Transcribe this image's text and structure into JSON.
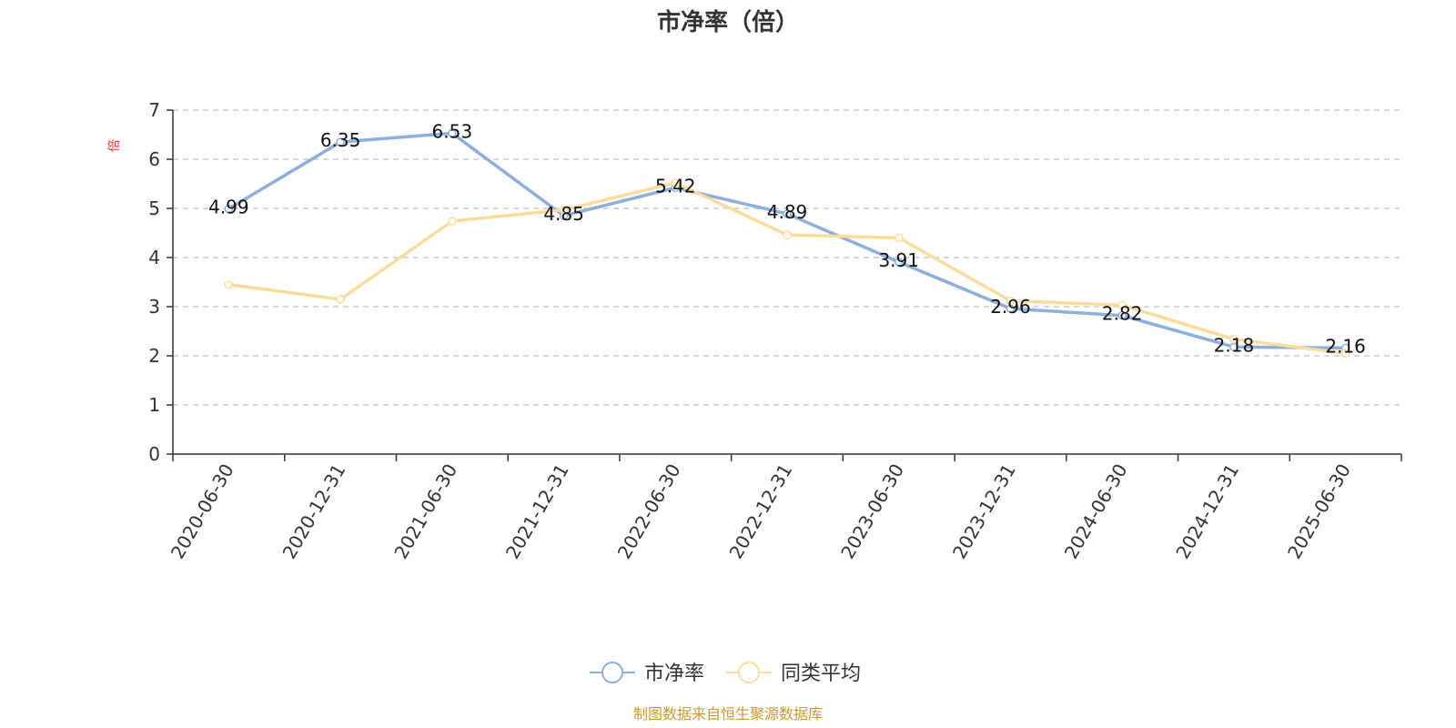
{
  "chart_data": {
    "type": "line",
    "title": "市净率（倍）",
    "y_unit": "倍",
    "categories": [
      "2020-06-30",
      "2020-12-31",
      "2021-06-30",
      "2021-12-31",
      "2022-06-30",
      "2022-12-31",
      "2023-06-30",
      "2023-12-31",
      "2024-06-30",
      "2024-12-31",
      "2025-06-30"
    ],
    "ylim": [
      0,
      7
    ],
    "yticks": [
      0,
      1,
      2,
      3,
      4,
      5,
      6,
      7
    ],
    "grid": true,
    "legend_position": "bottom-center",
    "series": [
      {
        "name": "市净率",
        "color": "#8eaedb",
        "values": [
          4.99,
          6.35,
          6.53,
          4.85,
          5.42,
          4.89,
          3.91,
          2.96,
          2.82,
          2.18,
          2.16
        ],
        "data_labels": [
          "4.99",
          "6.35",
          "6.53",
          "4.85",
          "5.42",
          "4.89",
          "3.91",
          "2.96",
          "2.82",
          "2.18",
          "2.16"
        ]
      },
      {
        "name": "同类平均",
        "color": "#fbdc9c",
        "values": [
          3.45,
          3.15,
          4.74,
          4.97,
          5.52,
          4.46,
          4.4,
          3.12,
          3.03,
          2.34,
          2.05
        ]
      }
    ]
  },
  "source_note": "制图数据来自恒生聚源数据库",
  "colors": {
    "unit": "#e8302a",
    "source": "#cc9933",
    "axis": "#333333",
    "grid": "#cccccc"
  }
}
